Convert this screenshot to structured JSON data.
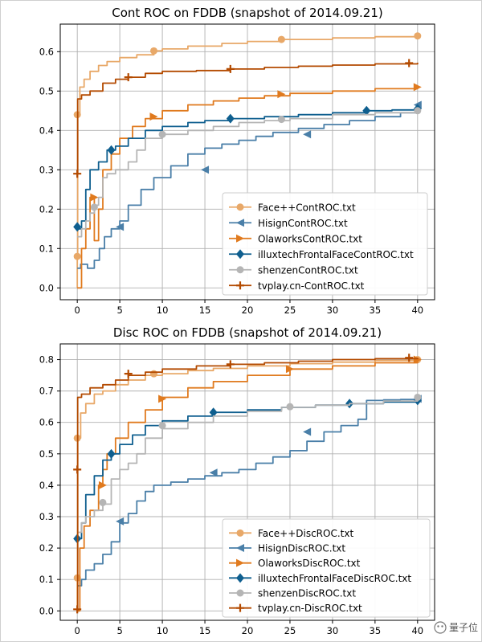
{
  "watermark": "量子位",
  "chart_data": [
    {
      "type": "line",
      "title": "Cont ROC on FDDB (snapshot of 2014.09.21)",
      "xlabel": "",
      "ylabel": "",
      "xlim": [
        -2,
        42
      ],
      "ylim": [
        -0.03,
        0.67
      ],
      "xticks": [
        0,
        5,
        10,
        15,
        20,
        25,
        30,
        35,
        40
      ],
      "yticks": [
        0.0,
        0.1,
        0.2,
        0.3,
        0.4,
        0.5,
        0.6
      ],
      "ytick_labels": [
        "0.0",
        "0.1",
        "0.2",
        "0.3",
        "0.4",
        "0.5",
        "0.6"
      ],
      "grid": true,
      "legend": "bottom-right",
      "series": [
        {
          "name": "Face++ContROC.txt",
          "color": "#e8a868",
          "marker": "circle",
          "x": [
            0,
            0,
            0.05,
            0.3,
            0.8,
            1.5,
            2.5,
            3.5,
            5,
            7,
            9,
            10,
            13,
            17,
            20,
            24,
            30,
            35,
            40
          ],
          "y": [
            0.0,
            0.08,
            0.44,
            0.51,
            0.53,
            0.55,
            0.565,
            0.575,
            0.585,
            0.592,
            0.602,
            0.607,
            0.614,
            0.621,
            0.626,
            0.631,
            0.635,
            0.638,
            0.64
          ],
          "markers": [
            [
              0,
              0.08
            ],
            [
              0,
              0.44
            ],
            [
              9,
              0.602
            ],
            [
              24,
              0.631
            ],
            [
              40,
              0.64
            ]
          ]
        },
        {
          "name": "HisignContROC.txt",
          "color": "#4a7fa8",
          "marker": "tri-left",
          "x": [
            0,
            0.4,
            1.2,
            2.0,
            2.6,
            3.2,
            4.0,
            5.0,
            6.0,
            7.5,
            9.0,
            11,
            13,
            15,
            17,
            19,
            21,
            23,
            26,
            29,
            32,
            35,
            38,
            40
          ],
          "y": [
            0.05,
            0.06,
            0.05,
            0.07,
            0.1,
            0.13,
            0.15,
            0.17,
            0.21,
            0.25,
            0.28,
            0.31,
            0.34,
            0.355,
            0.365,
            0.375,
            0.385,
            0.395,
            0.405,
            0.415,
            0.425,
            0.435,
            0.445,
            0.465
          ],
          "markers": [
            [
              5,
              0.155
            ],
            [
              15,
              0.3
            ],
            [
              27,
              0.39
            ],
            [
              40,
              0.465
            ]
          ]
        },
        {
          "name": "OlaworksContROC.txt",
          "color": "#e07a1e",
          "marker": "tri-right",
          "x": [
            0,
            0.5,
            1.0,
            1.5,
            2.0,
            2.5,
            3.0,
            4.0,
            5.0,
            6.5,
            8.0,
            10,
            13,
            16,
            19,
            22,
            25,
            30,
            35,
            40
          ],
          "y": [
            0.0,
            0.1,
            0.15,
            0.23,
            0.12,
            0.2,
            0.3,
            0.34,
            0.38,
            0.41,
            0.43,
            0.45,
            0.465,
            0.475,
            0.482,
            0.488,
            0.494,
            0.5,
            0.506,
            0.51
          ],
          "markers": [
            [
              2,
              0.23
            ],
            [
              9,
              0.435
            ],
            [
              24,
              0.492
            ],
            [
              40,
              0.51
            ]
          ]
        },
        {
          "name": "illuxtechFrontalFaceContROC.txt",
          "color": "#0f5f8f",
          "marker": "diamond",
          "x": [
            0,
            0.5,
            1.0,
            1.5,
            2.5,
            3.5,
            4.5,
            6.0,
            8.0,
            10,
            13,
            15,
            18,
            22,
            26,
            30,
            34,
            37,
            40
          ],
          "y": [
            0.15,
            0.17,
            0.25,
            0.3,
            0.32,
            0.35,
            0.36,
            0.38,
            0.4,
            0.41,
            0.42,
            0.425,
            0.43,
            0.435,
            0.44,
            0.445,
            0.45,
            0.452,
            0.455
          ],
          "markers": [
            [
              0,
              0.155
            ],
            [
              4,
              0.35
            ],
            [
              18,
              0.43
            ],
            [
              34,
              0.45
            ],
            [
              40,
              0.455
            ]
          ]
        },
        {
          "name": "shenzenContROC.txt",
          "color": "#b5b5b5",
          "marker": "circle",
          "x": [
            0,
            0.5,
            1.0,
            1.5,
            2.0,
            2.5,
            3.0,
            3.5,
            4.5,
            6.0,
            7.0,
            8.0,
            10,
            13,
            16,
            19,
            22,
            25,
            30,
            35,
            40
          ],
          "y": [
            0.13,
            0.15,
            0.17,
            0.19,
            0.21,
            0.23,
            0.28,
            0.29,
            0.3,
            0.32,
            0.35,
            0.38,
            0.39,
            0.4,
            0.41,
            0.42,
            0.425,
            0.43,
            0.44,
            0.445,
            0.45
          ],
          "markers": [
            [
              2,
              0.205
            ],
            [
              10,
              0.39
            ],
            [
              24,
              0.428
            ],
            [
              40,
              0.45
            ]
          ]
        },
        {
          "name": "tvplay.cn-ContROC.txt",
          "color": "#b34a00",
          "marker": "plus",
          "x": [
            0,
            0.05,
            0.5,
            1.5,
            3.0,
            4.5,
            6.0,
            8.0,
            10,
            14,
            18,
            22,
            26,
            30,
            35,
            40
          ],
          "y": [
            0.29,
            0.48,
            0.49,
            0.5,
            0.52,
            0.53,
            0.535,
            0.545,
            0.55,
            0.552,
            0.556,
            0.56,
            0.563,
            0.566,
            0.569,
            0.572
          ],
          "markers": [
            [
              0,
              0.29
            ],
            [
              6,
              0.535
            ],
            [
              18,
              0.556
            ],
            [
              39,
              0.571
            ]
          ]
        }
      ]
    },
    {
      "type": "line",
      "title": "Disc ROC on FDDB (snapshot of 2014.09.21)",
      "xlabel": "",
      "ylabel": "",
      "xlim": [
        -2,
        42
      ],
      "ylim": [
        -0.03,
        0.85
      ],
      "xticks": [
        0,
        5,
        10,
        15,
        20,
        25,
        30,
        35,
        40
      ],
      "yticks": [
        0.0,
        0.1,
        0.2,
        0.3,
        0.4,
        0.5,
        0.6,
        0.7,
        0.8
      ],
      "ytick_labels": [
        "0.0",
        "0.1",
        "0.2",
        "0.3",
        "0.4",
        "0.5",
        "0.6",
        "0.7",
        "0.8"
      ],
      "grid": true,
      "legend": "bottom-right",
      "series": [
        {
          "name": "Face++DiscROC.txt",
          "color": "#e8a868",
          "marker": "circle",
          "x": [
            0,
            0,
            0.05,
            0.4,
            1.0,
            2.0,
            3.0,
            4.5,
            6.0,
            8.0,
            10,
            13,
            16,
            20,
            25,
            30,
            35,
            40
          ],
          "y": [
            0.0,
            0.1,
            0.55,
            0.63,
            0.66,
            0.69,
            0.7,
            0.72,
            0.735,
            0.75,
            0.755,
            0.765,
            0.772,
            0.78,
            0.787,
            0.792,
            0.797,
            0.8
          ],
          "markers": [
            [
              0,
              0.105
            ],
            [
              0,
              0.55
            ],
            [
              9,
              0.755
            ],
            [
              40,
              0.8
            ]
          ]
        },
        {
          "name": "HisignDiscROC.txt",
          "color": "#4a7fa8",
          "marker": "tri-left",
          "x": [
            0,
            0.5,
            1.0,
            2.0,
            3.0,
            4.0,
            5.0,
            6.0,
            7.0,
            8.0,
            9.0,
            11,
            13,
            15,
            17,
            19,
            21,
            23,
            25,
            27,
            29,
            31,
            33,
            34,
            36,
            38,
            40
          ],
          "y": [
            0.08,
            0.1,
            0.13,
            0.15,
            0.18,
            0.22,
            0.28,
            0.31,
            0.35,
            0.38,
            0.4,
            0.41,
            0.42,
            0.43,
            0.44,
            0.45,
            0.47,
            0.49,
            0.51,
            0.54,
            0.57,
            0.59,
            0.61,
            0.67,
            0.672,
            0.673,
            0.675
          ],
          "markers": [
            [
              5,
              0.285
            ],
            [
              16,
              0.44
            ],
            [
              27,
              0.57
            ],
            [
              40,
              0.675
            ]
          ]
        },
        {
          "name": "OlaworksDiscROC.txt",
          "color": "#e07a1e",
          "marker": "tri-right",
          "x": [
            0,
            0.3,
            0.8,
            1.5,
            2.5,
            3.0,
            3.5,
            4.5,
            6.0,
            8.0,
            10,
            13,
            16,
            20,
            25,
            30,
            35,
            40
          ],
          "y": [
            0.0,
            0.2,
            0.27,
            0.32,
            0.4,
            0.45,
            0.5,
            0.55,
            0.6,
            0.64,
            0.68,
            0.71,
            0.73,
            0.75,
            0.77,
            0.78,
            0.79,
            0.8
          ],
          "markers": [
            [
              3,
              0.4
            ],
            [
              10,
              0.675
            ],
            [
              25,
              0.77
            ],
            [
              40,
              0.8
            ]
          ]
        },
        {
          "name": "illuxtechFrontalFaceDiscROC.txt",
          "color": "#0f5f8f",
          "marker": "diamond",
          "x": [
            0,
            0.5,
            1.0,
            2.0,
            3.0,
            4.0,
            5.0,
            6.5,
            8.0,
            10,
            13,
            16,
            20,
            24,
            28,
            32,
            36,
            40
          ],
          "y": [
            0.23,
            0.28,
            0.37,
            0.43,
            0.48,
            0.5,
            0.53,
            0.56,
            0.59,
            0.605,
            0.62,
            0.632,
            0.64,
            0.648,
            0.655,
            0.66,
            0.665,
            0.67
          ],
          "markers": [
            [
              0,
              0.23
            ],
            [
              4,
              0.5
            ],
            [
              16,
              0.632
            ],
            [
              32,
              0.66
            ],
            [
              40,
              0.67
            ]
          ]
        },
        {
          "name": "shenzenDiscROC.txt",
          "color": "#b5b5b5",
          "marker": "circle",
          "x": [
            0,
            0.5,
            1.0,
            2.0,
            3.0,
            4.0,
            5.0,
            6.0,
            7.0,
            8.0,
            10,
            13,
            16,
            20,
            24,
            28,
            32,
            36,
            40
          ],
          "y": [
            0.25,
            0.28,
            0.3,
            0.32,
            0.34,
            0.42,
            0.45,
            0.47,
            0.5,
            0.55,
            0.58,
            0.6,
            0.62,
            0.635,
            0.648,
            0.655,
            0.66,
            0.668,
            0.68
          ],
          "markers": [
            [
              3,
              0.345
            ],
            [
              10,
              0.59
            ],
            [
              25,
              0.65
            ],
            [
              40,
              0.68
            ]
          ]
        },
        {
          "name": "tvplay.cn-DiscROC.txt",
          "color": "#b34a00",
          "marker": "plus",
          "x": [
            0,
            0.05,
            0.5,
            1.5,
            3.0,
            4.5,
            6.0,
            8.0,
            10,
            14,
            18,
            22,
            26,
            30,
            35,
            40
          ],
          "y": [
            0.0,
            0.68,
            0.69,
            0.71,
            0.72,
            0.735,
            0.75,
            0.76,
            0.77,
            0.78,
            0.785,
            0.79,
            0.795,
            0.8,
            0.803,
            0.806
          ],
          "markers": [
            [
              0,
              0.005
            ],
            [
              0,
              0.45
            ],
            [
              6,
              0.755
            ],
            [
              18,
              0.785
            ],
            [
              39,
              0.806
            ]
          ]
        }
      ]
    }
  ]
}
